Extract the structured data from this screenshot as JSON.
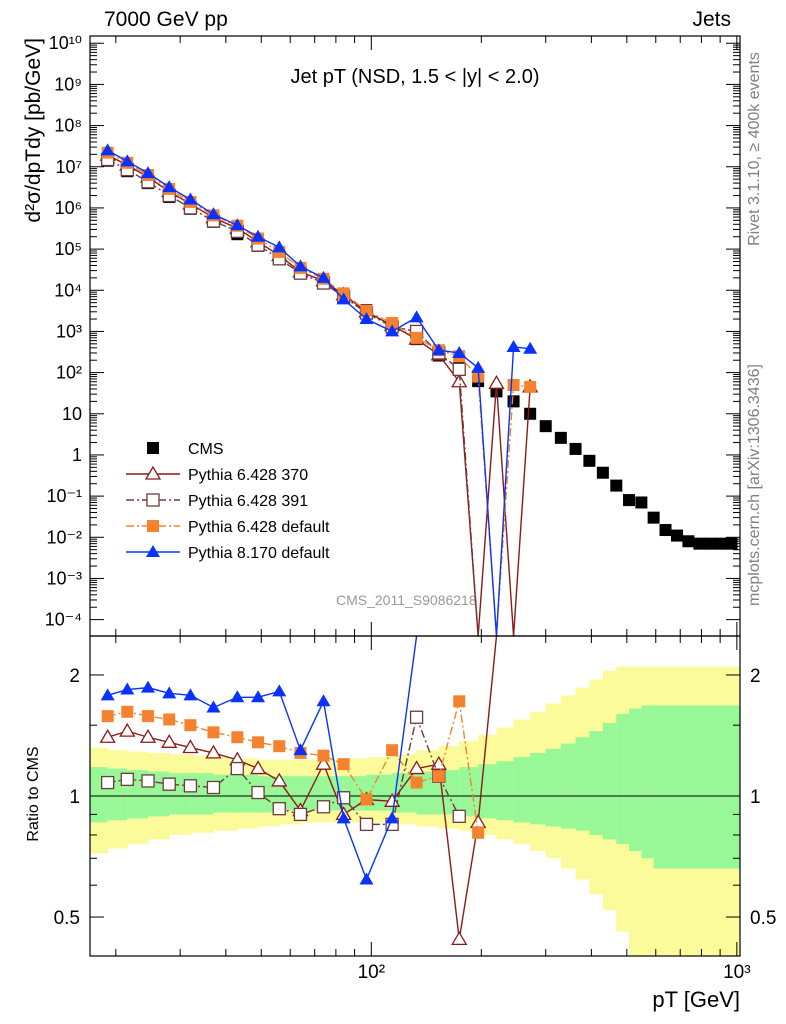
{
  "header": {
    "energy": "7000 GeV pp",
    "process": "Jets"
  },
  "side": {
    "rivet": "Rivet 3.1.10, ≥ 400k events",
    "mcplots": "mcplots.cern.ch [arXiv:1306.3436]"
  },
  "watermark": "CMS_2011_S9086218",
  "chart_data": [
    {
      "type": "scatter",
      "title": "Jet pT (NSD, 1.5 < |y| < 2.0)",
      "xlabel": "pT [GeV]",
      "ylabel": "d²σ/dpTdy [pb/GeV]",
      "xscale": "log",
      "yscale": "log",
      "xlim": [
        17,
        1020
      ],
      "ylim": [
        4e-05,
        15000000000
      ],
      "legend_position": "bottom-left",
      "grid": false,
      "series": [
        {
          "name": "CMS",
          "color": "#000000",
          "marker": "filled-square",
          "line": "none",
          "x": [
            19,
            21.5,
            24.5,
            28,
            32,
            37,
            43,
            49,
            56,
            64,
            74,
            84,
            97,
            114,
            133,
            153,
            174,
            196,
            220,
            245,
            272,
            300,
            330,
            362,
            395,
            430,
            468,
            507,
            548,
            592,
            638,
            686,
            737,
            790,
            846,
            905,
            967
          ],
          "y": [
            14000000,
            7800000,
            4000000,
            1850000,
            950000,
            460000,
            230000,
            120000,
            62000,
            29000,
            15000,
            7000,
            3300,
            1500,
            650,
            260,
            130,
            62,
            35,
            20,
            10,
            5,
            2.6,
            1.4,
            0.72,
            0.37,
            0.18,
            0.08,
            0.07,
            0.03,
            0.015,
            0.011,
            0.008,
            0.007,
            0.007,
            0.007,
            0.007
          ]
        },
        {
          "name": "Pythia 6.428 370",
          "color": "#8b1a1a",
          "marker": "open-triangle",
          "line": "solid",
          "x": [
            19,
            21.5,
            24.5,
            28,
            32,
            37,
            43,
            49,
            56,
            64,
            74,
            84,
            97,
            114,
            133,
            153,
            174,
            196,
            220,
            245,
            272
          ],
          "y": [
            19000000,
            11000000,
            5600000,
            2500000,
            1250000,
            580000,
            320000,
            150000,
            70000,
            28000,
            17000,
            7800,
            3000,
            1400,
            650,
            270,
            60,
            4e-05,
            55,
            4e-05,
            45
          ]
        },
        {
          "name": "Pythia 6.428 391",
          "color": "#6e3b3b",
          "marker": "open-square",
          "line": "dash-dot",
          "x": [
            19,
            21.5,
            24.5,
            28,
            32,
            37,
            43,
            49,
            56,
            64,
            74,
            84,
            97,
            114,
            133,
            153,
            174,
            196
          ],
          "y": [
            15000000,
            8500000,
            4300000,
            2000000,
            1000000,
            480000,
            270000,
            125000,
            58000,
            26000,
            15000,
            7000,
            2800,
            1300,
            1000,
            300,
            120,
            4e-05
          ]
        },
        {
          "name": "Pythia 6.428 default",
          "color": "#f5822f",
          "marker": "filled-square",
          "line": "dash-dot",
          "x": [
            19,
            21.5,
            24.5,
            28,
            32,
            37,
            43,
            49,
            56,
            64,
            74,
            84,
            97,
            114,
            133,
            153,
            174,
            196,
            220,
            245,
            272
          ],
          "y": [
            22000000,
            12500000,
            6300000,
            2900000,
            1400000,
            660000,
            370000,
            180000,
            85000,
            35000,
            19000,
            8400,
            3200,
            1600,
            700,
            350,
            250,
            80,
            4e-05,
            50,
            45
          ]
        },
        {
          "name": "Pythia 8.170 default",
          "color": "#0a32ff",
          "marker": "filled-triangle",
          "line": "solid",
          "x": [
            19,
            21.5,
            24.5,
            28,
            32,
            37,
            43,
            49,
            56,
            64,
            74,
            84,
            97,
            114,
            133,
            153,
            174,
            196,
            220,
            245,
            272
          ],
          "y": [
            25000000,
            13500000,
            7000000,
            3200000,
            1600000,
            700000,
            380000,
            200000,
            110000,
            38000,
            20000,
            6000,
            2000,
            1000,
            2200,
            350,
            300,
            130,
            4e-05,
            420,
            380
          ]
        }
      ]
    },
    {
      "type": "line",
      "ylabel": "Ratio to CMS",
      "xscale": "log",
      "yscale": "log",
      "xlim": [
        17,
        1020
      ],
      "ylim": [
        0.4,
        2.5
      ],
      "reference_line": 1,
      "bands": {
        "edges": [
          17,
          19,
          21.5,
          24.5,
          28,
          32,
          37,
          43,
          49,
          56,
          64,
          74,
          84,
          97,
          114,
          133,
          153,
          174,
          196,
          220,
          245,
          272,
          300,
          330,
          362,
          395,
          430,
          468,
          507,
          548,
          592,
          1020
        ],
        "stat_lo": [
          0.86,
          0.87,
          0.88,
          0.89,
          0.9,
          0.9,
          0.91,
          0.91,
          0.91,
          0.92,
          0.92,
          0.92,
          0.92,
          0.92,
          0.91,
          0.9,
          0.9,
          0.89,
          0.88,
          0.87,
          0.86,
          0.85,
          0.84,
          0.83,
          0.82,
          0.8,
          0.78,
          0.76,
          0.73,
          0.7,
          0.66
        ],
        "stat_hi": [
          1.18,
          1.17,
          1.16,
          1.15,
          1.14,
          1.14,
          1.13,
          1.13,
          1.12,
          1.12,
          1.12,
          1.12,
          1.12,
          1.13,
          1.14,
          1.15,
          1.16,
          1.18,
          1.2,
          1.22,
          1.25,
          1.28,
          1.31,
          1.35,
          1.4,
          1.45,
          1.52,
          1.6,
          1.65,
          1.68,
          1.68
        ],
        "syst_lo": [
          0.72,
          0.74,
          0.76,
          0.78,
          0.8,
          0.81,
          0.82,
          0.83,
          0.84,
          0.85,
          0.86,
          0.86,
          0.86,
          0.86,
          0.85,
          0.84,
          0.83,
          0.82,
          0.8,
          0.78,
          0.76,
          0.73,
          0.7,
          0.66,
          0.62,
          0.57,
          0.52,
          0.46,
          0.4,
          0.4,
          0.4
        ],
        "syst_hi": [
          1.32,
          1.3,
          1.29,
          1.28,
          1.27,
          1.26,
          1.25,
          1.24,
          1.23,
          1.23,
          1.23,
          1.23,
          1.24,
          1.25,
          1.27,
          1.3,
          1.33,
          1.37,
          1.42,
          1.48,
          1.55,
          1.62,
          1.7,
          1.78,
          1.86,
          1.95,
          2.05,
          2.1,
          2.1,
          2.1,
          2.1
        ],
        "stat_color": "#98f898",
        "syst_color": "#fbfb9b"
      },
      "series": [
        {
          "name": "Pythia 6.428 370",
          "x": [
            19,
            21.5,
            24.5,
            28,
            32,
            37,
            43,
            49,
            56,
            64,
            74,
            84,
            97,
            114,
            133,
            153,
            174,
            196,
            220
          ],
          "y": [
            1.4,
            1.45,
            1.4,
            1.36,
            1.32,
            1.28,
            1.23,
            1.17,
            1.09,
            0.92,
            1.2,
            0.9,
            0.98,
            0.97,
            1.17,
            1.2,
            0.44,
            0.86,
            2.5
          ]
        },
        {
          "name": "Pythia 6.428 391",
          "x": [
            19,
            21.5,
            24.5,
            28,
            32,
            37,
            43,
            49,
            56,
            64,
            74,
            84,
            97,
            114,
            133,
            153,
            174
          ],
          "y": [
            1.08,
            1.1,
            1.09,
            1.07,
            1.06,
            1.05,
            1.17,
            1.02,
            0.93,
            0.9,
            0.94,
            0.99,
            0.85,
            0.85,
            1.57,
            1.12,
            0.89
          ]
        },
        {
          "name": "Pythia 6.428 default",
          "x": [
            19,
            21.5,
            24.5,
            28,
            32,
            37,
            43,
            49,
            56,
            64,
            74,
            84,
            97,
            114,
            133,
            153,
            174,
            196
          ],
          "y": [
            1.58,
            1.62,
            1.58,
            1.55,
            1.5,
            1.44,
            1.4,
            1.36,
            1.33,
            1.28,
            1.26,
            1.2,
            0.98,
            1.3,
            1.08,
            1.12,
            1.72,
            0.81
          ]
        },
        {
          "name": "Pythia 8.170 default",
          "x": [
            19,
            21.5,
            24.5,
            28,
            32,
            37,
            43,
            49,
            56,
            64,
            74,
            84,
            97,
            114,
            133
          ],
          "y": [
            1.78,
            1.84,
            1.86,
            1.8,
            1.78,
            1.66,
            1.76,
            1.76,
            1.82,
            1.3,
            1.72,
            0.88,
            0.62,
            0.88,
            2.5
          ]
        }
      ],
      "ytick_labels": [
        "0.5",
        "1",
        "2"
      ]
    }
  ],
  "axes": {
    "main_ytick_labels": [
      "10⁻⁴",
      "10⁻³",
      "10⁻²",
      "10⁻¹",
      "1",
      "10",
      "10²",
      "10³",
      "10⁴",
      "10⁵",
      "10⁶",
      "10⁷",
      "10⁸",
      "10⁹",
      "10¹⁰"
    ],
    "xtick_labels": [
      "10²",
      "10³"
    ]
  }
}
